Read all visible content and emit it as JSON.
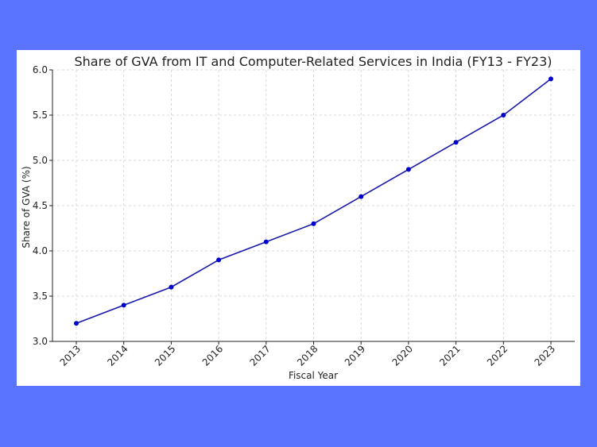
{
  "chart_data": {
    "type": "line",
    "title": "Share of GVA from IT and Computer-Related Services in India (FY13 - FY23)",
    "xlabel": "Fiscal Year",
    "ylabel": "Share of GVA (%)",
    "categories": [
      "2013",
      "2014",
      "2015",
      "2016",
      "2017",
      "2018",
      "2019",
      "2020",
      "2021",
      "2022",
      "2023"
    ],
    "series": [
      {
        "name": "Share of GVA",
        "values": [
          3.2,
          3.4,
          3.6,
          3.9,
          4.1,
          4.3,
          4.6,
          4.9,
          5.2,
          5.5,
          5.9
        ]
      }
    ],
    "ylim": [
      3.0,
      6.0
    ],
    "yticks": [
      "3.0",
      "3.5",
      "4.0",
      "4.5",
      "5.0",
      "5.5",
      "6.0"
    ],
    "grid": true,
    "colors": {
      "line": "#1a1aaa",
      "marker": "#0000cc",
      "background": "#5b74ff",
      "panel": "#ffffff"
    }
  }
}
